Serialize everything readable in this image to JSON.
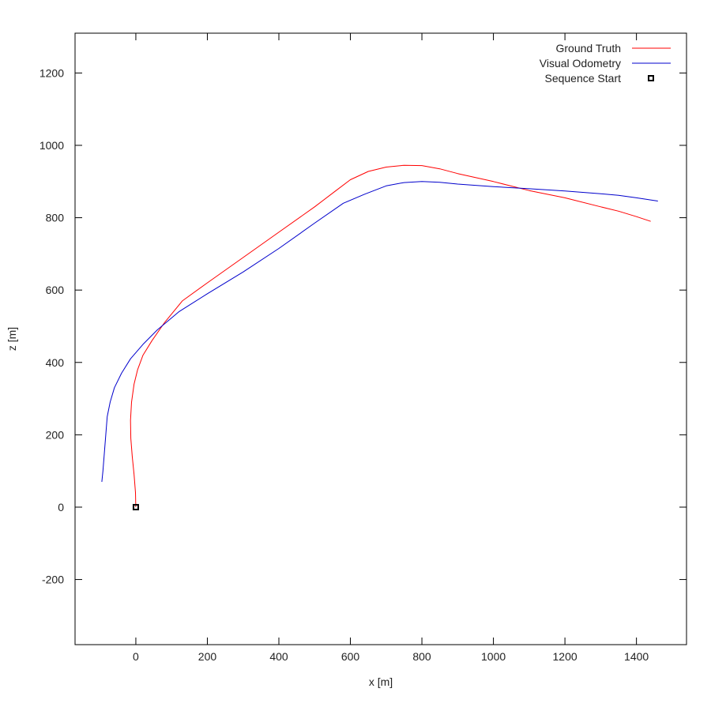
{
  "chart_data": {
    "type": "line",
    "xlabel": "x [m]",
    "ylabel": "z [m]",
    "xlim": [
      -170,
      1540
    ],
    "ylim": [
      -380,
      1310
    ],
    "x_ticks": [
      0,
      200,
      400,
      600,
      800,
      1000,
      1200,
      1400
    ],
    "y_ticks": [
      -200,
      0,
      200,
      400,
      600,
      800,
      1000,
      1200
    ],
    "grid": false,
    "legend_position": "top-right",
    "series": [
      {
        "name": "Ground Truth",
        "color": "#ff0000",
        "points": [
          [
            0,
            0
          ],
          [
            -1,
            40
          ],
          [
            -5,
            90
          ],
          [
            -10,
            140
          ],
          [
            -14,
            190
          ],
          [
            -15,
            240
          ],
          [
            -12,
            290
          ],
          [
            -5,
            340
          ],
          [
            5,
            380
          ],
          [
            20,
            420
          ],
          [
            45,
            460
          ],
          [
            80,
            510
          ],
          [
            130,
            570
          ],
          [
            200,
            620
          ],
          [
            300,
            690
          ],
          [
            400,
            760
          ],
          [
            500,
            830
          ],
          [
            560,
            875
          ],
          [
            600,
            905
          ],
          [
            650,
            928
          ],
          [
            700,
            940
          ],
          [
            750,
            945
          ],
          [
            800,
            944
          ],
          [
            850,
            935
          ],
          [
            900,
            922
          ],
          [
            1000,
            900
          ],
          [
            1100,
            875
          ],
          [
            1200,
            855
          ],
          [
            1300,
            830
          ],
          [
            1350,
            818
          ],
          [
            1400,
            803
          ],
          [
            1440,
            790
          ]
        ]
      },
      {
        "name": "Visual Odometry",
        "color": "#0000cc",
        "points": [
          [
            -95,
            70
          ],
          [
            -92,
            100
          ],
          [
            -88,
            150
          ],
          [
            -84,
            200
          ],
          [
            -80,
            250
          ],
          [
            -72,
            290
          ],
          [
            -60,
            330
          ],
          [
            -40,
            370
          ],
          [
            -15,
            410
          ],
          [
            20,
            450
          ],
          [
            60,
            490
          ],
          [
            120,
            540
          ],
          [
            200,
            590
          ],
          [
            300,
            650
          ],
          [
            400,
            715
          ],
          [
            500,
            785
          ],
          [
            580,
            840
          ],
          [
            640,
            865
          ],
          [
            700,
            888
          ],
          [
            750,
            897
          ],
          [
            800,
            900
          ],
          [
            850,
            898
          ],
          [
            900,
            893
          ],
          [
            1000,
            886
          ],
          [
            1100,
            880
          ],
          [
            1200,
            874
          ],
          [
            1300,
            866
          ],
          [
            1350,
            862
          ],
          [
            1400,
            855
          ],
          [
            1460,
            846
          ]
        ]
      },
      {
        "name": "Sequence Start",
        "color": "#000000",
        "marker": "square",
        "points": [
          [
            0,
            0
          ]
        ]
      }
    ]
  }
}
